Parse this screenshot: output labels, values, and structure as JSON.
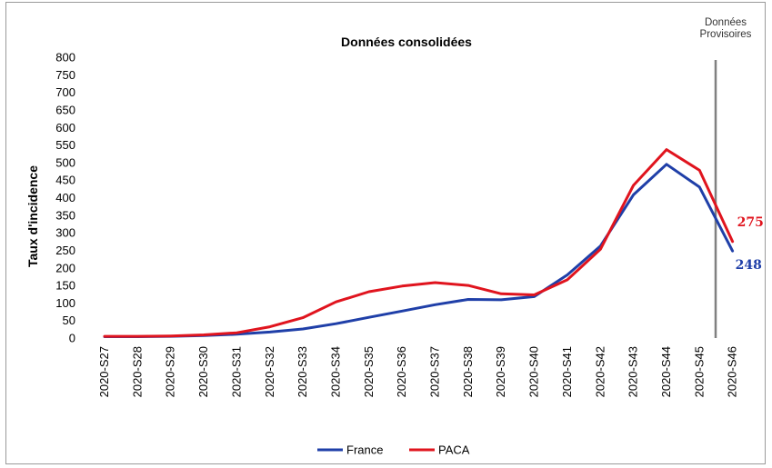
{
  "chart_data": {
    "type": "line",
    "title": "Données consolidées",
    "xlabel": "",
    "ylabel": "Taux d'incidence",
    "ylim": [
      0,
      800
    ],
    "yticks": [
      0,
      50,
      100,
      150,
      200,
      250,
      300,
      350,
      400,
      450,
      500,
      550,
      600,
      650,
      700,
      750,
      800
    ],
    "grid": false,
    "legend_position": "bottom",
    "categories": [
      "2020-S27",
      "2020-S28",
      "2020-S29",
      "2020-S30",
      "2020-S31",
      "2020-S32",
      "2020-S33",
      "2020-S34",
      "2020-S35",
      "2020-S36",
      "2020-S37",
      "2020-S38",
      "2020-S39",
      "2020-S40",
      "2020-S41",
      "2020-S42",
      "2020-S43",
      "2020-S44",
      "2020-S45",
      "2020-S46"
    ],
    "series": [
      {
        "name": "France",
        "color": "#1f3fa8",
        "values": [
          4,
          4,
          5,
          7,
          11,
          17,
          26,
          41,
          59,
          77,
          95,
          110,
          109,
          118,
          180,
          262,
          408,
          495,
          430,
          248
        ]
      },
      {
        "name": "PACA",
        "color": "#e0141e",
        "values": [
          5,
          5,
          6,
          9,
          15,
          32,
          58,
          103,
          132,
          148,
          158,
          150,
          126,
          123,
          166,
          253,
          435,
          537,
          478,
          275
        ]
      }
    ],
    "end_labels": [
      "248",
      "275"
    ],
    "annotation": {
      "text_line1": "Données",
      "text_line2": "Provisoires",
      "color": "#808080"
    }
  }
}
